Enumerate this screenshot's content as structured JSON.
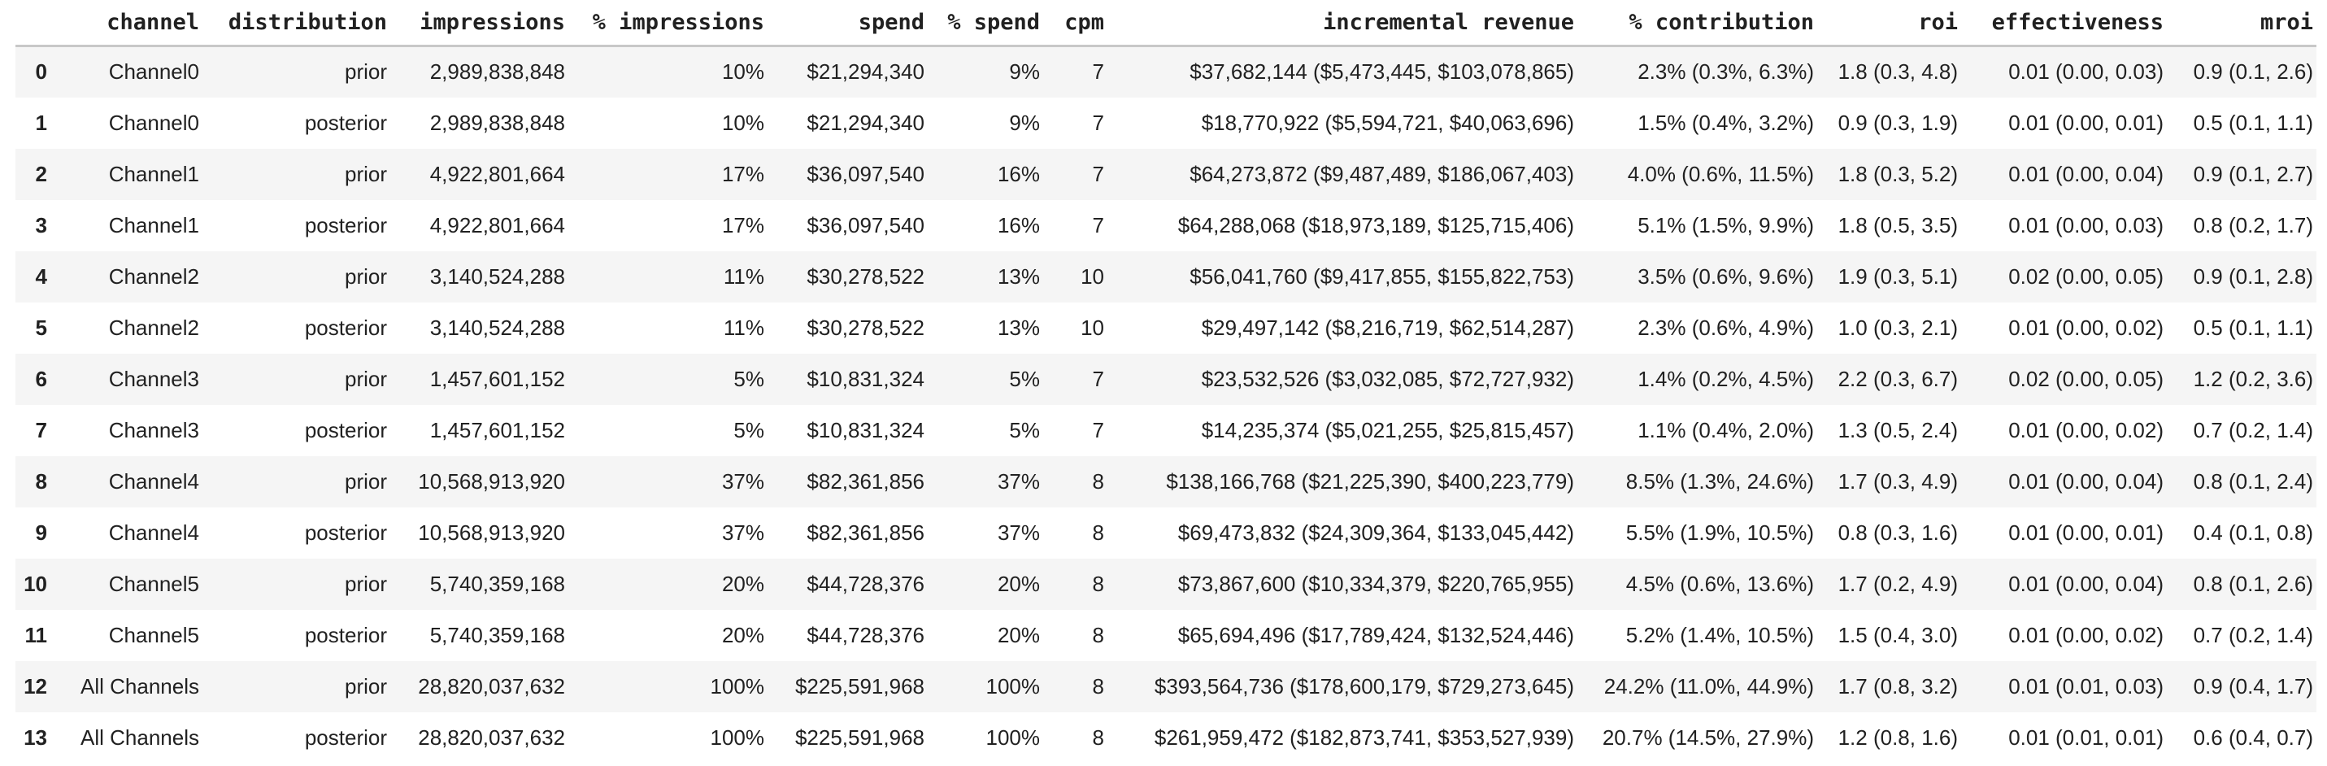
{
  "table": {
    "index_header": "",
    "columns": [
      "channel",
      "distribution",
      "impressions",
      "% impressions",
      "spend",
      "% spend",
      "cpm",
      "incremental revenue",
      "% contribution",
      "roi",
      "effectiveness",
      "mroi"
    ],
    "rows": [
      {
        "index": "0",
        "cells": [
          "Channel0",
          "prior",
          "2,989,838,848",
          "10%",
          "$21,294,340",
          "9%",
          "7",
          "$37,682,144 ($5,473,445, $103,078,865)",
          "2.3% (0.3%, 6.3%)",
          "1.8 (0.3, 4.8)",
          "0.01 (0.00, 0.03)",
          "0.9 (0.1, 2.6)"
        ]
      },
      {
        "index": "1",
        "cells": [
          "Channel0",
          "posterior",
          "2,989,838,848",
          "10%",
          "$21,294,340",
          "9%",
          "7",
          "$18,770,922 ($5,594,721, $40,063,696)",
          "1.5% (0.4%, 3.2%)",
          "0.9 (0.3, 1.9)",
          "0.01 (0.00, 0.01)",
          "0.5 (0.1, 1.1)"
        ]
      },
      {
        "index": "2",
        "cells": [
          "Channel1",
          "prior",
          "4,922,801,664",
          "17%",
          "$36,097,540",
          "16%",
          "7",
          "$64,273,872 ($9,487,489, $186,067,403)",
          "4.0% (0.6%, 11.5%)",
          "1.8 (0.3, 5.2)",
          "0.01 (0.00, 0.04)",
          "0.9 (0.1, 2.7)"
        ]
      },
      {
        "index": "3",
        "cells": [
          "Channel1",
          "posterior",
          "4,922,801,664",
          "17%",
          "$36,097,540",
          "16%",
          "7",
          "$64,288,068 ($18,973,189, $125,715,406)",
          "5.1% (1.5%, 9.9%)",
          "1.8 (0.5, 3.5)",
          "0.01 (0.00, 0.03)",
          "0.8 (0.2, 1.7)"
        ]
      },
      {
        "index": "4",
        "cells": [
          "Channel2",
          "prior",
          "3,140,524,288",
          "11%",
          "$30,278,522",
          "13%",
          "10",
          "$56,041,760 ($9,417,855, $155,822,753)",
          "3.5% (0.6%, 9.6%)",
          "1.9 (0.3, 5.1)",
          "0.02 (0.00, 0.05)",
          "0.9 (0.1, 2.8)"
        ]
      },
      {
        "index": "5",
        "cells": [
          "Channel2",
          "posterior",
          "3,140,524,288",
          "11%",
          "$30,278,522",
          "13%",
          "10",
          "$29,497,142 ($8,216,719, $62,514,287)",
          "2.3% (0.6%, 4.9%)",
          "1.0 (0.3, 2.1)",
          "0.01 (0.00, 0.02)",
          "0.5 (0.1, 1.1)"
        ]
      },
      {
        "index": "6",
        "cells": [
          "Channel3",
          "prior",
          "1,457,601,152",
          "5%",
          "$10,831,324",
          "5%",
          "7",
          "$23,532,526 ($3,032,085, $72,727,932)",
          "1.4% (0.2%, 4.5%)",
          "2.2 (0.3, 6.7)",
          "0.02 (0.00, 0.05)",
          "1.2 (0.2, 3.6)"
        ]
      },
      {
        "index": "7",
        "cells": [
          "Channel3",
          "posterior",
          "1,457,601,152",
          "5%",
          "$10,831,324",
          "5%",
          "7",
          "$14,235,374 ($5,021,255, $25,815,457)",
          "1.1% (0.4%, 2.0%)",
          "1.3 (0.5, 2.4)",
          "0.01 (0.00, 0.02)",
          "0.7 (0.2, 1.4)"
        ]
      },
      {
        "index": "8",
        "cells": [
          "Channel4",
          "prior",
          "10,568,913,920",
          "37%",
          "$82,361,856",
          "37%",
          "8",
          "$138,166,768 ($21,225,390, $400,223,779)",
          "8.5% (1.3%, 24.6%)",
          "1.7 (0.3, 4.9)",
          "0.01 (0.00, 0.04)",
          "0.8 (0.1, 2.4)"
        ]
      },
      {
        "index": "9",
        "cells": [
          "Channel4",
          "posterior",
          "10,568,913,920",
          "37%",
          "$82,361,856",
          "37%",
          "8",
          "$69,473,832 ($24,309,364, $133,045,442)",
          "5.5% (1.9%, 10.5%)",
          "0.8 (0.3, 1.6)",
          "0.01 (0.00, 0.01)",
          "0.4 (0.1, 0.8)"
        ]
      },
      {
        "index": "10",
        "cells": [
          "Channel5",
          "prior",
          "5,740,359,168",
          "20%",
          "$44,728,376",
          "20%",
          "8",
          "$73,867,600 ($10,334,379, $220,765,955)",
          "4.5% (0.6%, 13.6%)",
          "1.7 (0.2, 4.9)",
          "0.01 (0.00, 0.04)",
          "0.8 (0.1, 2.6)"
        ]
      },
      {
        "index": "11",
        "cells": [
          "Channel5",
          "posterior",
          "5,740,359,168",
          "20%",
          "$44,728,376",
          "20%",
          "8",
          "$65,694,496 ($17,789,424, $132,524,446)",
          "5.2% (1.4%, 10.5%)",
          "1.5 (0.4, 3.0)",
          "0.01 (0.00, 0.02)",
          "0.7 (0.2, 1.4)"
        ]
      },
      {
        "index": "12",
        "cells": [
          "All Channels",
          "prior",
          "28,820,037,632",
          "100%",
          "$225,591,968",
          "100%",
          "8",
          "$393,564,736 ($178,600,179, $729,273,645)",
          "24.2% (11.0%, 44.9%)",
          "1.7 (0.8, 3.2)",
          "0.01 (0.01, 0.03)",
          "0.9 (0.4, 1.7)"
        ]
      },
      {
        "index": "13",
        "cells": [
          "All Channels",
          "posterior",
          "28,820,037,632",
          "100%",
          "$225,591,968",
          "100%",
          "8",
          "$261,959,472 ($182,873,741, $353,527,939)",
          "20.7% (14.5%, 27.9%)",
          "1.2 (0.8, 1.6)",
          "0.01 (0.01, 0.01)",
          "0.6 (0.4, 0.7)"
        ]
      }
    ]
  },
  "colors": {
    "background": "#ffffff",
    "row_stripe": "#f5f5f5",
    "header_border": "#c8c8c8",
    "text": "#212121"
  }
}
